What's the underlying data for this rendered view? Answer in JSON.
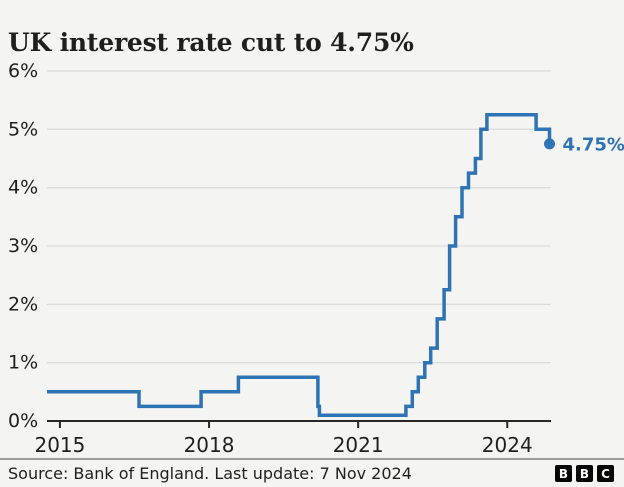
{
  "header": {
    "title": "UK interest rate cut to 4.75%"
  },
  "footer": {
    "source": "Source: Bank of England. Last update: 7 Nov 2024",
    "logo_letters": [
      "B",
      "B",
      "C"
    ]
  },
  "chart_data": {
    "type": "line",
    "subtype": "step-after",
    "title": "UK interest rate cut to 4.75%",
    "unit": "%",
    "grid": true,
    "x_domain": [
      2014.74,
      2024.88
    ],
    "ylim": [
      0,
      6
    ],
    "yticks": [
      {
        "v": 0,
        "label": "0%"
      },
      {
        "v": 1,
        "label": "1%"
      },
      {
        "v": 2,
        "label": "2%"
      },
      {
        "v": 3,
        "label": "3%"
      },
      {
        "v": 4,
        "label": "4%"
      },
      {
        "v": 5,
        "label": "5%"
      },
      {
        "v": 6,
        "label": "6%"
      }
    ],
    "xticks": [
      {
        "v": 2015,
        "label": "2015"
      },
      {
        "v": 2018,
        "label": "2018"
      },
      {
        "v": 2021,
        "label": "2021"
      },
      {
        "v": 2024,
        "label": "2024"
      }
    ],
    "series": [
      {
        "name": "UK interest rate",
        "points": [
          {
            "x": 2014.74,
            "y": 0.5
          },
          {
            "x": 2016.59,
            "y": 0.25
          },
          {
            "x": 2017.84,
            "y": 0.5
          },
          {
            "x": 2018.59,
            "y": 0.75
          },
          {
            "x": 2020.19,
            "y": 0.25
          },
          {
            "x": 2020.22,
            "y": 0.1
          },
          {
            "x": 2021.96,
            "y": 0.25
          },
          {
            "x": 2022.09,
            "y": 0.5
          },
          {
            "x": 2022.21,
            "y": 0.75
          },
          {
            "x": 2022.34,
            "y": 1.0
          },
          {
            "x": 2022.46,
            "y": 1.25
          },
          {
            "x": 2022.59,
            "y": 1.75
          },
          {
            "x": 2022.73,
            "y": 2.25
          },
          {
            "x": 2022.84,
            "y": 3.0
          },
          {
            "x": 2022.96,
            "y": 3.5
          },
          {
            "x": 2023.09,
            "y": 4.0
          },
          {
            "x": 2023.22,
            "y": 4.25
          },
          {
            "x": 2023.36,
            "y": 4.5
          },
          {
            "x": 2023.47,
            "y": 5.0
          },
          {
            "x": 2023.59,
            "y": 5.25
          },
          {
            "x": 2024.58,
            "y": 5.0
          },
          {
            "x": 2024.85,
            "y": 4.75
          }
        ]
      }
    ],
    "annotation": {
      "label": "4.75%"
    },
    "end_dot": true,
    "legend": "none",
    "colors": {
      "line": "#2e73b4",
      "annotation": "#2e73b4",
      "grid": "#dcdcda",
      "axis": "#262626",
      "text": "#1f1f1d",
      "background": "#f4f4f2"
    }
  }
}
